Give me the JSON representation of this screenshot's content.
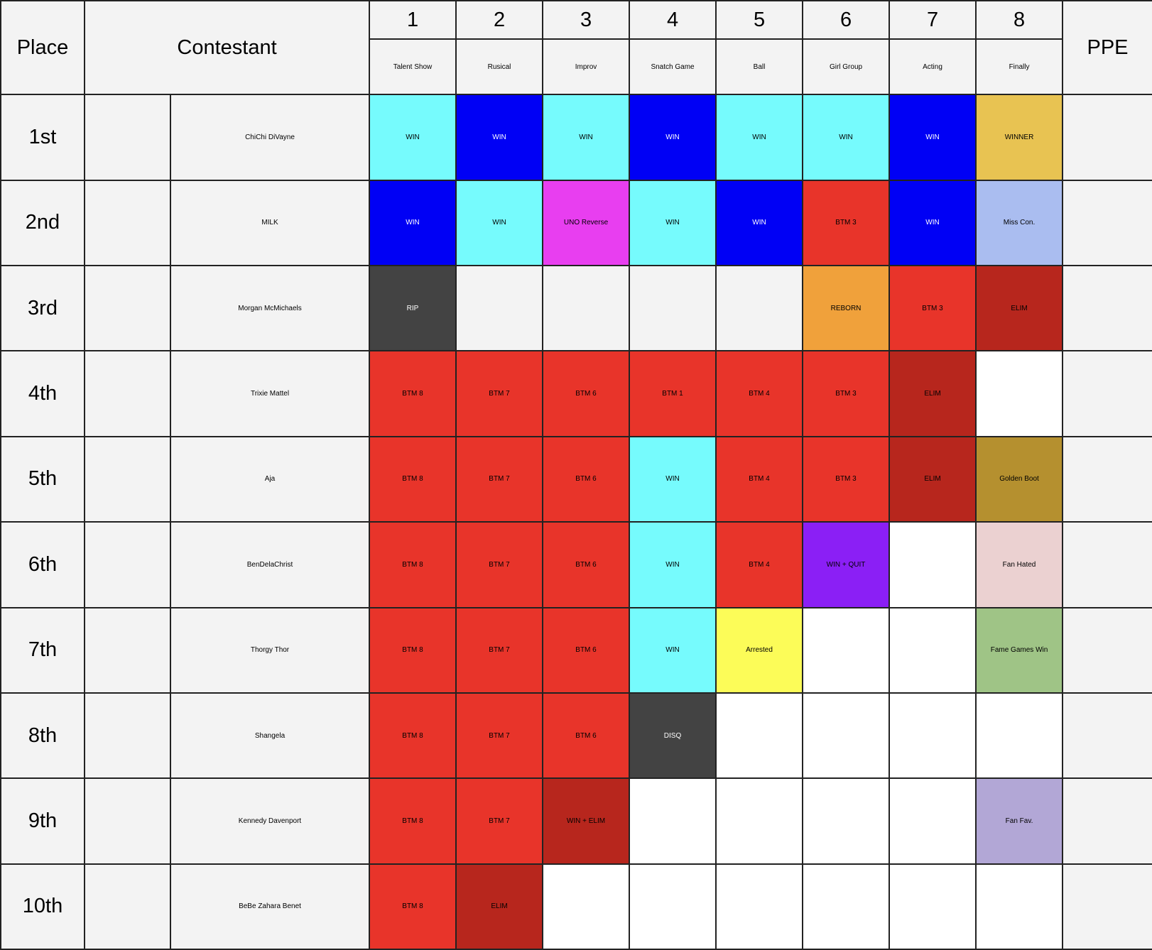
{
  "header": {
    "place": "Place",
    "contestant": "Contestant",
    "ppe": "PPE",
    "episodes": [
      {
        "number": "1",
        "name": "Talent Show"
      },
      {
        "number": "2",
        "name": "Rusical"
      },
      {
        "number": "3",
        "name": "Improv"
      },
      {
        "number": "4",
        "name": "Snatch Game"
      },
      {
        "number": "5",
        "name": "Ball"
      },
      {
        "number": "6",
        "name": "Girl Group"
      },
      {
        "number": "7",
        "name": "Acting"
      },
      {
        "number": "8",
        "name": "Finally"
      }
    ]
  },
  "rows": [
    {
      "place": "1st",
      "contestant": "ChiChi DiVayne",
      "results": [
        {
          "text": "WIN",
          "color": "#76fbfd"
        },
        {
          "text": "WIN",
          "color": "#0000f5"
        },
        {
          "text": "WIN",
          "color": "#76fbfd"
        },
        {
          "text": "WIN",
          "color": "#0000f5"
        },
        {
          "text": "WIN",
          "color": "#76fbfd"
        },
        {
          "text": "WIN",
          "color": "#76fbfd"
        },
        {
          "text": "WIN",
          "color": "#0000f5"
        },
        {
          "text": "WINNER",
          "color": "#e8c352"
        }
      ]
    },
    {
      "place": "2nd",
      "contestant": "MILK",
      "results": [
        {
          "text": "WIN",
          "color": "#0000f5"
        },
        {
          "text": "WIN",
          "color": "#76fbfd"
        },
        {
          "text": "UNO Reverse",
          "color": "#e83ef0"
        },
        {
          "text": "WIN",
          "color": "#76fbfd"
        },
        {
          "text": "WIN",
          "color": "#0000f5"
        },
        {
          "text": "BTM 3",
          "color": "#e8342a"
        },
        {
          "text": "WIN",
          "color": "#0000f5"
        },
        {
          "text": "Miss Con.",
          "color": "#aabdf0"
        }
      ]
    },
    {
      "place": "3rd",
      "contestant": "Morgan McMichaels",
      "results": [
        {
          "text": "RIP",
          "color": "#434343"
        },
        {
          "color": "#f3f3f3"
        },
        {
          "color": "#f3f3f3"
        },
        {
          "color": "#f3f3f3"
        },
        {
          "color": "#f3f3f3"
        },
        {
          "text": "REBORN",
          "color": "#f0a13b"
        },
        {
          "text": "BTM 3",
          "color": "#e8342a"
        },
        {
          "text": "ELIM",
          "color": "#b7261d"
        }
      ]
    },
    {
      "place": "4th",
      "contestant": "Trixie Mattel",
      "results": [
        {
          "text": "BTM 8",
          "color": "#e8342a"
        },
        {
          "text": "BTM 7",
          "color": "#e8342a"
        },
        {
          "text": "BTM 6",
          "color": "#e8342a"
        },
        {
          "text": "BTM 1",
          "color": "#e8342a"
        },
        {
          "text": "BTM 4",
          "color": "#e8342a"
        },
        {
          "text": "BTM 3",
          "color": "#e8342a"
        },
        {
          "text": "ELIM",
          "color": "#b7261d"
        },
        {
          "color": "#ffffff"
        }
      ]
    },
    {
      "place": "5th",
      "contestant": "Aja",
      "results": [
        {
          "text": "BTM 8",
          "color": "#e8342a"
        },
        {
          "text": "BTM 7",
          "color": "#e8342a"
        },
        {
          "text": "BTM 6",
          "color": "#e8342a"
        },
        {
          "text": "WIN",
          "color": "#76fbfd"
        },
        {
          "text": "BTM 4",
          "color": "#e8342a"
        },
        {
          "text": "BTM 3",
          "color": "#e8342a"
        },
        {
          "text": "ELIM",
          "color": "#b7261d"
        },
        {
          "text": "Golden Boot",
          "color": "#b5902f"
        }
      ]
    },
    {
      "place": "6th",
      "contestant": "BenDelaChrist",
      "results": [
        {
          "text": "BTM 8",
          "color": "#e8342a"
        },
        {
          "text": "BTM 7",
          "color": "#e8342a"
        },
        {
          "text": "BTM 6",
          "color": "#e8342a"
        },
        {
          "text": "WIN",
          "color": "#76fbfd"
        },
        {
          "text": "BTM 4",
          "color": "#e8342a"
        },
        {
          "text": "WIN + QUIT",
          "color": "#8b1ff5"
        },
        {
          "color": "#ffffff"
        },
        {
          "text": "Fan Hated",
          "color": "#ebd1d1"
        }
      ]
    },
    {
      "place": "7th",
      "contestant": "Thorgy Thor",
      "results": [
        {
          "text": "BTM 8",
          "color": "#e8342a"
        },
        {
          "text": "BTM 7",
          "color": "#e8342a"
        },
        {
          "text": "BTM 6",
          "color": "#e8342a"
        },
        {
          "text": "WIN",
          "color": "#76fbfd"
        },
        {
          "text": "Arrested",
          "color": "#fcfc58"
        },
        {
          "color": "#ffffff"
        },
        {
          "color": "#ffffff"
        },
        {
          "text": "Fame Games Win",
          "color": "#9fc486"
        }
      ]
    },
    {
      "place": "8th",
      "contestant": "Shangela",
      "results": [
        {
          "text": "BTM 8",
          "color": "#e8342a"
        },
        {
          "text": "BTM 7",
          "color": "#e8342a"
        },
        {
          "text": "BTM 6",
          "color": "#e8342a"
        },
        {
          "text": "DISQ",
          "color": "#434343"
        },
        {
          "color": "#ffffff"
        },
        {
          "color": "#ffffff"
        },
        {
          "color": "#ffffff"
        },
        {
          "color": "#ffffff"
        }
      ]
    },
    {
      "place": "9th",
      "contestant": "Kennedy Davenport",
      "results": [
        {
          "text": "BTM 8",
          "color": "#e8342a"
        },
        {
          "text": "BTM 7",
          "color": "#e8342a"
        },
        {
          "text": "WIN + ELIM",
          "color": "#b7261d"
        },
        {
          "color": "#ffffff"
        },
        {
          "color": "#ffffff"
        },
        {
          "color": "#ffffff"
        },
        {
          "color": "#ffffff"
        },
        {
          "text": "Fan Fav.",
          "color": "#b2a7d6"
        }
      ]
    },
    {
      "place": "10th",
      "contestant": "BeBe Zahara Benet",
      "results": [
        {
          "text": "BTM 8",
          "color": "#e8342a"
        },
        {
          "text": "ELIM",
          "color": "#b7261d"
        },
        {
          "color": "#ffffff"
        },
        {
          "color": "#ffffff"
        },
        {
          "color": "#ffffff"
        },
        {
          "color": "#ffffff"
        },
        {
          "color": "#ffffff"
        },
        {
          "color": "#ffffff"
        }
      ]
    }
  ]
}
